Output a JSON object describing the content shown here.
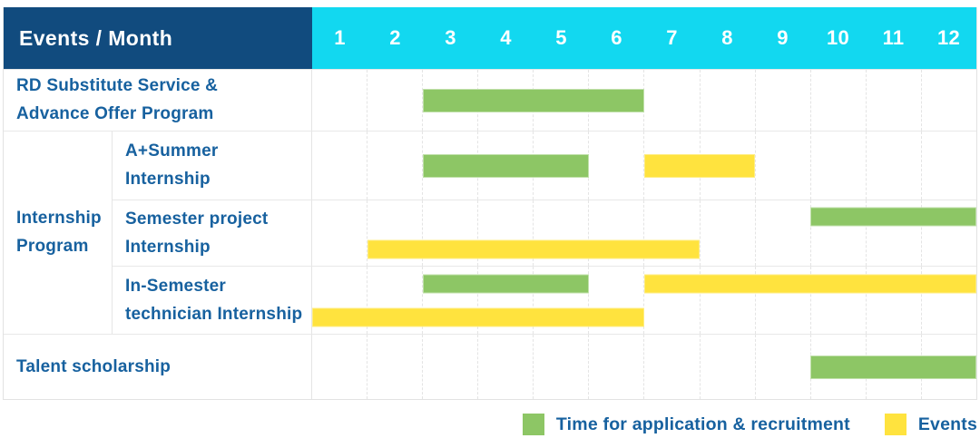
{
  "colors": {
    "navy": "#114b7e",
    "cyan": "#12d8f0",
    "label_blue": "#17619f",
    "green": "#8dc665",
    "yellow": "#ffe33e",
    "grid_line": "#e5e5e5"
  },
  "table": {
    "header": {
      "title": "Events / Month",
      "height": 68,
      "months": [
        "1",
        "2",
        "3",
        "4",
        "5",
        "6",
        "7",
        "8",
        "9",
        "10",
        "11",
        "12"
      ]
    },
    "rows": [
      {
        "kind": "full",
        "height": 68,
        "label_lines": [
          "RD Substitute Service &",
          "Advance Offer Program"
        ],
        "lines": [
          [
            {
              "color": "green",
              "start": 3,
              "end": 6
            }
          ]
        ]
      },
      {
        "kind": "sub",
        "height": 76,
        "group": {
          "label_lines": [
            "Internship",
            "Program"
          ],
          "span": 3
        },
        "label_lines": [
          "A+Summer",
          "Internship"
        ],
        "lines": [
          [
            {
              "color": "green",
              "start": 3,
              "end": 5
            },
            {
              "color": "yellow",
              "start": 7,
              "end": 8
            }
          ]
        ]
      },
      {
        "kind": "sub",
        "height": 73,
        "label_lines": [
          "Semester project",
          "Internship"
        ],
        "lines": [
          [
            {
              "color": "green",
              "start": 10,
              "end": 12
            }
          ],
          [
            {
              "color": "yellow",
              "start": 2,
              "end": 7
            }
          ]
        ]
      },
      {
        "kind": "sub",
        "height": 75,
        "label_lines": [
          "In-Semester",
          "technician Internship"
        ],
        "lines": [
          [
            {
              "color": "green",
              "start": 3,
              "end": 5
            },
            {
              "color": "yellow",
              "start": 7,
              "end": 12
            }
          ],
          [
            {
              "color": "yellow",
              "start": 1,
              "end": 6
            }
          ]
        ]
      },
      {
        "kind": "full",
        "height": 72,
        "label_lines": [
          "Talent scholarship"
        ],
        "lines": [
          [
            {
              "color": "green",
              "start": 10,
              "end": 12
            }
          ]
        ]
      }
    ]
  },
  "legend": {
    "items": [
      {
        "color": "green",
        "label": "Time for application & recruitment"
      },
      {
        "color": "yellow",
        "label": "Events"
      }
    ]
  },
  "chart_data": {
    "type": "bar",
    "subtype": "gantt",
    "title": "Events / Month",
    "x": {
      "label": "Month",
      "ticks": [
        1,
        2,
        3,
        4,
        5,
        6,
        7,
        8,
        9,
        10,
        11,
        12
      ],
      "range": [
        1,
        12
      ]
    },
    "grid": "dashed-vertical-month-lines",
    "legend_position": "bottom-right",
    "rows": [
      "RD Substitute Service & Advance Offer Program",
      "Internship Program / A+Summer Internship",
      "Internship Program / Semester project Internship",
      "Internship Program / In-Semester technician Internship",
      "Talent scholarship"
    ],
    "series": [
      {
        "name": "Time for application & recruitment",
        "color": "#8dc665",
        "spans": [
          {
            "row": "RD Substitute Service & Advance Offer Program",
            "start_month": 3,
            "end_month": 6
          },
          {
            "row": "Internship Program / A+Summer Internship",
            "start_month": 3,
            "end_month": 5
          },
          {
            "row": "Internship Program / Semester project Internship",
            "start_month": 10,
            "end_month": 12
          },
          {
            "row": "Internship Program / In-Semester technician Internship",
            "start_month": 3,
            "end_month": 5
          },
          {
            "row": "Talent scholarship",
            "start_month": 10,
            "end_month": 12
          }
        ]
      },
      {
        "name": "Events",
        "color": "#ffe33e",
        "spans": [
          {
            "row": "Internship Program / A+Summer Internship",
            "start_month": 7,
            "end_month": 8
          },
          {
            "row": "Internship Program / Semester project Internship",
            "start_month": 2,
            "end_month": 7
          },
          {
            "row": "Internship Program / In-Semester technician Internship",
            "start_month": 7,
            "end_month": 12
          },
          {
            "row": "Internship Program / In-Semester technician Internship",
            "start_month": 1,
            "end_month": 6
          }
        ]
      }
    ]
  }
}
